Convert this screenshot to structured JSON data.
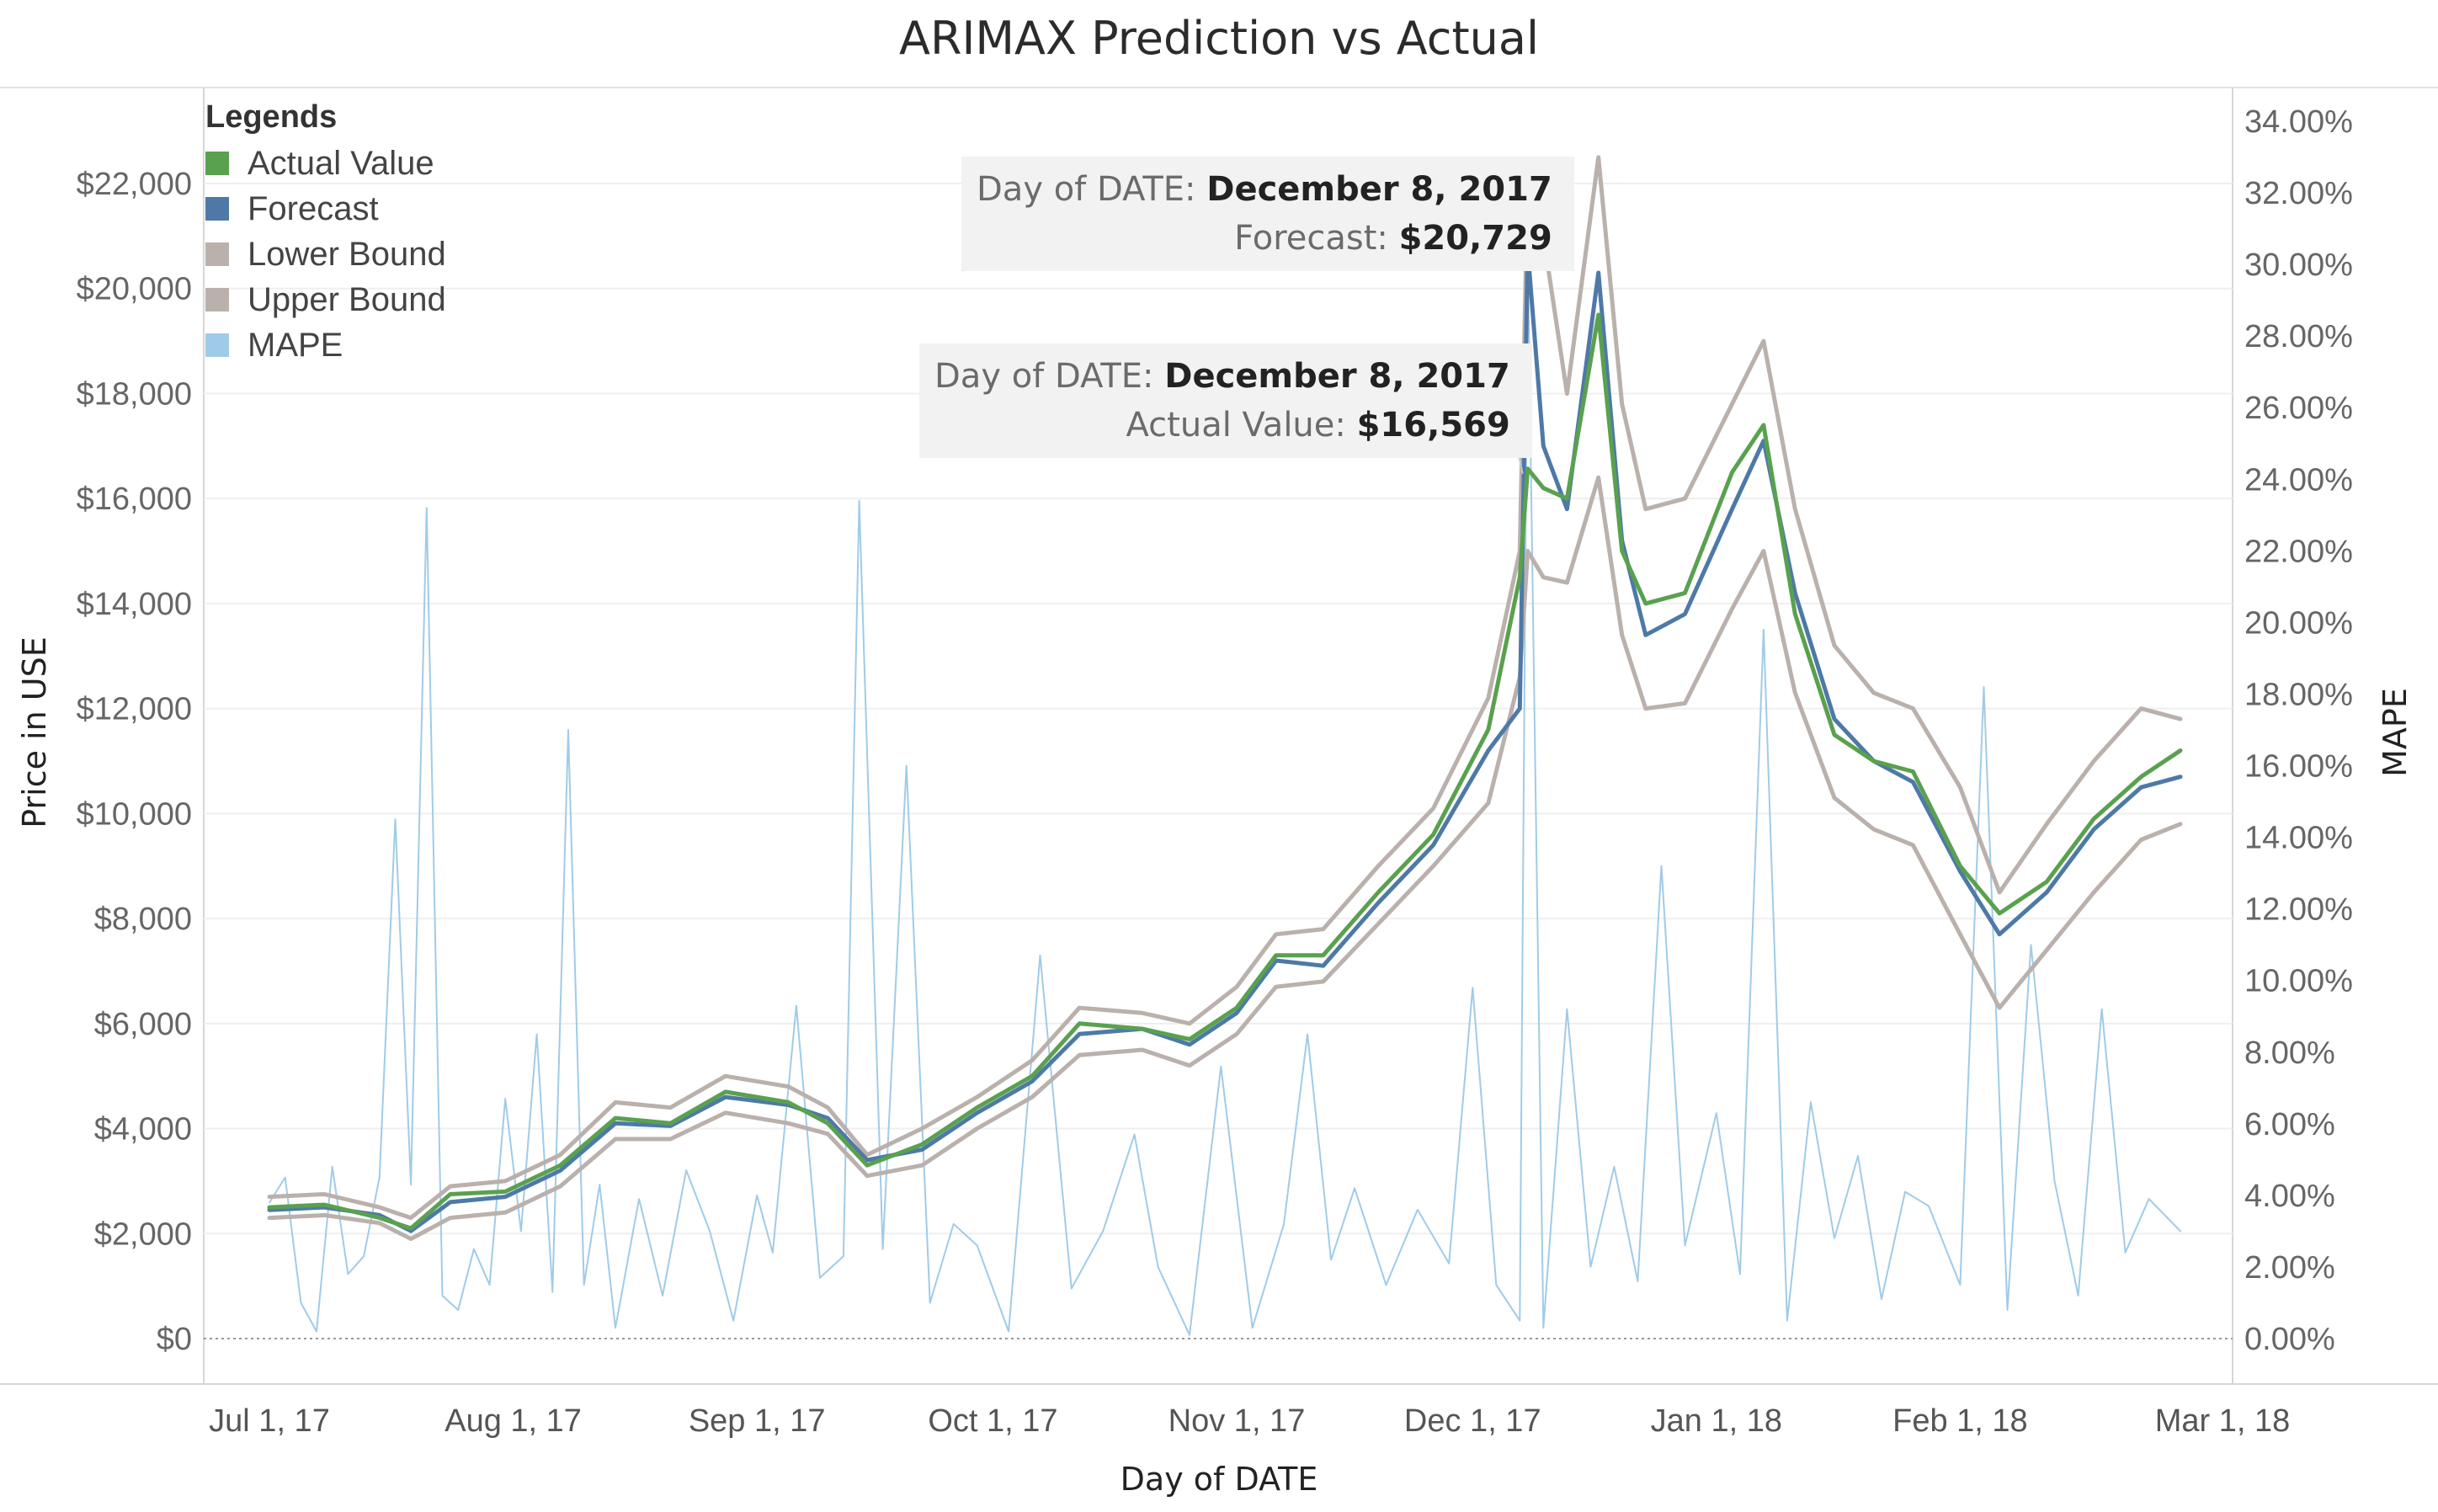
{
  "chart_data": {
    "type": "line",
    "title": "ARIMAX Prediction vs Actual",
    "xlabel": "Day of DATE",
    "ylabel": "Price in USE",
    "y2label": "MAPE",
    "x_ticks": [
      "Jul 1, 17",
      "Aug 1, 17",
      "Sep 1, 17",
      "Oct 1, 17",
      "Nov 1, 17",
      "Dec 1, 17",
      "Jan 1, 18",
      "Feb 1, 18",
      "Mar 1, 18"
    ],
    "y_ticks": [
      "$0",
      "$2,000",
      "$4,000",
      "$6,000",
      "$8,000",
      "$10,000",
      "$12,000",
      "$14,000",
      "$16,000",
      "$18,000",
      "$20,000",
      "$22,000"
    ],
    "y2_ticks": [
      "0.00%",
      "2.00%",
      "4.00%",
      "6.00%",
      "8.00%",
      "10.00%",
      "12.00%",
      "14.00%",
      "16.00%",
      "18.00%",
      "20.00%",
      "22.00%",
      "24.00%",
      "26.00%",
      "28.00%",
      "30.00%",
      "32.00%",
      "34.00%"
    ],
    "xlim": [
      "2017-07-01",
      "2018-03-01"
    ],
    "ylim": [
      0,
      22000
    ],
    "y2lim": [
      0,
      34
    ],
    "grid": true,
    "legend_position": "top-left",
    "legend_title": "Legends",
    "legend": [
      {
        "name": "Actual Value",
        "color": "#59a14f"
      },
      {
        "name": "Forecast",
        "color": "#4e79a7"
      },
      {
        "name": "Lower Bound",
        "color": "#bab0ac"
      },
      {
        "name": "Upper Bound",
        "color": "#bab0ac"
      },
      {
        "name": "MAPE",
        "color": "#a0cbe8"
      }
    ],
    "series": [
      {
        "name": "Actual Value",
        "axis": "left",
        "color": "#59a14f",
        "x": [
          "2017-07-01",
          "2017-07-08",
          "2017-07-15",
          "2017-07-19",
          "2017-07-24",
          "2017-07-31",
          "2017-08-07",
          "2017-08-14",
          "2017-08-21",
          "2017-08-28",
          "2017-09-05",
          "2017-09-10",
          "2017-09-15",
          "2017-09-22",
          "2017-09-29",
          "2017-10-06",
          "2017-10-12",
          "2017-10-20",
          "2017-10-26",
          "2017-11-01",
          "2017-11-06",
          "2017-11-12",
          "2017-11-19",
          "2017-11-26",
          "2017-12-03",
          "2017-12-07",
          "2017-12-08",
          "2017-12-10",
          "2017-12-13",
          "2017-12-17",
          "2017-12-20",
          "2017-12-23",
          "2017-12-28",
          "2018-01-03",
          "2018-01-07",
          "2018-01-11",
          "2018-01-16",
          "2018-01-21",
          "2018-01-26",
          "2018-02-01",
          "2018-02-06",
          "2018-02-12",
          "2018-02-18",
          "2018-02-24",
          "2018-03-01"
        ],
        "values": [
          2500,
          2550,
          2300,
          2100,
          2750,
          2800,
          3300,
          4200,
          4100,
          4700,
          4500,
          4100,
          3300,
          3700,
          4400,
          5000,
          6000,
          5900,
          5700,
          6300,
          7300,
          7300,
          8500,
          9600,
          11600,
          14500,
          16569,
          16200,
          16000,
          19500,
          15000,
          14000,
          14200,
          16500,
          17400,
          13800,
          11500,
          11000,
          10800,
          9000,
          8100,
          8700,
          9900,
          10700,
          11200
        ]
      },
      {
        "name": "Forecast",
        "axis": "left",
        "color": "#4e79a7",
        "x": [
          "2017-07-01",
          "2017-07-08",
          "2017-07-15",
          "2017-07-19",
          "2017-07-24",
          "2017-07-31",
          "2017-08-07",
          "2017-08-14",
          "2017-08-21",
          "2017-08-28",
          "2017-09-05",
          "2017-09-10",
          "2017-09-15",
          "2017-09-22",
          "2017-09-29",
          "2017-10-06",
          "2017-10-12",
          "2017-10-20",
          "2017-10-26",
          "2017-11-01",
          "2017-11-06",
          "2017-11-12",
          "2017-11-19",
          "2017-11-26",
          "2017-12-03",
          "2017-12-07",
          "2017-12-08",
          "2017-12-10",
          "2017-12-13",
          "2017-12-17",
          "2017-12-20",
          "2017-12-23",
          "2017-12-28",
          "2018-01-03",
          "2018-01-07",
          "2018-01-11",
          "2018-01-16",
          "2018-01-21",
          "2018-01-26",
          "2018-02-01",
          "2018-02-06",
          "2018-02-12",
          "2018-02-18",
          "2018-02-24",
          "2018-03-01"
        ],
        "values": [
          2450,
          2500,
          2350,
          2050,
          2600,
          2700,
          3200,
          4100,
          4050,
          4600,
          4450,
          4200,
          3400,
          3600,
          4300,
          4900,
          5800,
          5900,
          5600,
          6200,
          7200,
          7100,
          8300,
          9400,
          11200,
          12000,
          20729,
          17000,
          15800,
          20300,
          15200,
          13400,
          13800,
          15800,
          17100,
          14200,
          11800,
          11000,
          10600,
          8900,
          7700,
          8500,
          9700,
          10500,
          10700
        ]
      },
      {
        "name": "Lower Bound",
        "axis": "left",
        "color": "#bab0ac",
        "x": [
          "2017-07-01",
          "2017-07-08",
          "2017-07-15",
          "2017-07-19",
          "2017-07-24",
          "2017-07-31",
          "2017-08-07",
          "2017-08-14",
          "2017-08-21",
          "2017-08-28",
          "2017-09-05",
          "2017-09-10",
          "2017-09-15",
          "2017-09-22",
          "2017-09-29",
          "2017-10-06",
          "2017-10-12",
          "2017-10-20",
          "2017-10-26",
          "2017-11-01",
          "2017-11-06",
          "2017-11-12",
          "2017-11-19",
          "2017-11-26",
          "2017-12-03",
          "2017-12-07",
          "2017-12-08",
          "2017-12-10",
          "2017-12-13",
          "2017-12-17",
          "2017-12-20",
          "2017-12-23",
          "2017-12-28",
          "2018-01-03",
          "2018-01-07",
          "2018-01-11",
          "2018-01-16",
          "2018-01-21",
          "2018-01-26",
          "2018-02-01",
          "2018-02-06",
          "2018-02-12",
          "2018-02-18",
          "2018-02-24",
          "2018-03-01"
        ],
        "values": [
          2300,
          2350,
          2200,
          1900,
          2300,
          2400,
          2900,
          3800,
          3800,
          4300,
          4100,
          3900,
          3100,
          3300,
          4000,
          4600,
          5400,
          5500,
          5200,
          5800,
          6700,
          6800,
          7900,
          9000,
          10200,
          12600,
          15000,
          14500,
          14400,
          16400,
          13400,
          12000,
          12100,
          13900,
          15000,
          12300,
          10300,
          9700,
          9400,
          7700,
          6300,
          7400,
          8500,
          9500,
          9800
        ]
      },
      {
        "name": "Upper Bound",
        "axis": "left",
        "color": "#bab0ac",
        "x": [
          "2017-07-01",
          "2017-07-08",
          "2017-07-15",
          "2017-07-19",
          "2017-07-24",
          "2017-07-31",
          "2017-08-07",
          "2017-08-14",
          "2017-08-21",
          "2017-08-28",
          "2017-09-05",
          "2017-09-10",
          "2017-09-15",
          "2017-09-22",
          "2017-09-29",
          "2017-10-06",
          "2017-10-12",
          "2017-10-20",
          "2017-10-26",
          "2017-11-01",
          "2017-11-06",
          "2017-11-12",
          "2017-11-19",
          "2017-11-26",
          "2017-12-03",
          "2017-12-07",
          "2017-12-08",
          "2017-12-10",
          "2017-12-13",
          "2017-12-17",
          "2017-12-20",
          "2017-12-23",
          "2017-12-28",
          "2018-01-03",
          "2018-01-07",
          "2018-01-11",
          "2018-01-16",
          "2018-01-21",
          "2018-01-26",
          "2018-02-01",
          "2018-02-06",
          "2018-02-12",
          "2018-02-18",
          "2018-02-24",
          "2018-03-01"
        ],
        "values": [
          2700,
          2750,
          2500,
          2300,
          2900,
          3000,
          3500,
          4500,
          4400,
          5000,
          4800,
          4400,
          3500,
          4000,
          4600,
          5300,
          6300,
          6200,
          6000,
          6700,
          7700,
          7800,
          9000,
          10100,
          12200,
          15000,
          22000,
          21000,
          18000,
          22500,
          17800,
          15800,
          16000,
          17800,
          19000,
          15800,
          13200,
          12300,
          12000,
          10500,
          8500,
          9800,
          11000,
          12000,
          11800
        ]
      },
      {
        "name": "MAPE",
        "axis": "right",
        "color": "#a0cbe8",
        "x": [
          "2017-07-01",
          "2017-07-03",
          "2017-07-05",
          "2017-07-07",
          "2017-07-09",
          "2017-07-11",
          "2017-07-13",
          "2017-07-15",
          "2017-07-17",
          "2017-07-19",
          "2017-07-21",
          "2017-07-23",
          "2017-07-25",
          "2017-07-27",
          "2017-07-29",
          "2017-07-31",
          "2017-08-02",
          "2017-08-04",
          "2017-08-06",
          "2017-08-08",
          "2017-08-10",
          "2017-08-12",
          "2017-08-14",
          "2017-08-17",
          "2017-08-20",
          "2017-08-23",
          "2017-08-26",
          "2017-08-29",
          "2017-09-01",
          "2017-09-03",
          "2017-09-06",
          "2017-09-09",
          "2017-09-12",
          "2017-09-14",
          "2017-09-17",
          "2017-09-20",
          "2017-09-23",
          "2017-09-26",
          "2017-09-29",
          "2017-10-03",
          "2017-10-07",
          "2017-10-11",
          "2017-10-15",
          "2017-10-19",
          "2017-10-22",
          "2017-10-26",
          "2017-10-30",
          "2017-11-03",
          "2017-11-07",
          "2017-11-10",
          "2017-11-13",
          "2017-11-16",
          "2017-11-20",
          "2017-11-24",
          "2017-11-28",
          "2017-12-01",
          "2017-12-04",
          "2017-12-07",
          "2017-12-08",
          "2017-12-10",
          "2017-12-13",
          "2017-12-16",
          "2017-12-19",
          "2017-12-22",
          "2017-12-25",
          "2017-12-28",
          "2018-01-01",
          "2018-01-04",
          "2018-01-07",
          "2018-01-10",
          "2018-01-13",
          "2018-01-16",
          "2018-01-19",
          "2018-01-22",
          "2018-01-25",
          "2018-01-28",
          "2018-02-01",
          "2018-02-04",
          "2018-02-07",
          "2018-02-10",
          "2018-02-13",
          "2018-02-16",
          "2018-02-19",
          "2018-02-22",
          "2018-02-25",
          "2018-03-01"
        ],
        "values": [
          3.8,
          4.5,
          1.0,
          0.2,
          4.8,
          1.8,
          2.3,
          4.5,
          14.5,
          4.3,
          23.2,
          1.2,
          0.8,
          2.5,
          1.5,
          6.7,
          3.0,
          8.5,
          1.3,
          17.0,
          1.5,
          4.3,
          0.3,
          3.9,
          1.2,
          4.7,
          3.0,
          0.5,
          4.0,
          2.4,
          9.3,
          1.7,
          2.3,
          23.4,
          2.5,
          16.0,
          1.0,
          3.2,
          2.6,
          0.2,
          10.7,
          1.4,
          3.0,
          5.7,
          2.0,
          0.1,
          7.6,
          0.3,
          3.2,
          8.5,
          2.2,
          4.2,
          1.5,
          3.6,
          2.1,
          9.8,
          1.5,
          0.5,
          30.5,
          0.3,
          9.2,
          2.0,
          4.8,
          1.6,
          13.2,
          2.6,
          6.3,
          1.8,
          19.8,
          0.5,
          6.6,
          2.8,
          5.1,
          1.1,
          4.1,
          3.7,
          1.5,
          18.2,
          0.8,
          11.0,
          4.4,
          1.2,
          9.2,
          2.4,
          3.9,
          3.0
        ]
      }
    ]
  },
  "tooltips": [
    {
      "date_label": "Day of DATE:",
      "date_value": "December 8, 2017",
      "measure_label": "Forecast:",
      "measure_value": "$20,729"
    },
    {
      "date_label": "Day of DATE:",
      "date_value": "December 8, 2017",
      "measure_label": "Actual Value:",
      "measure_value": "$16,569"
    }
  ]
}
